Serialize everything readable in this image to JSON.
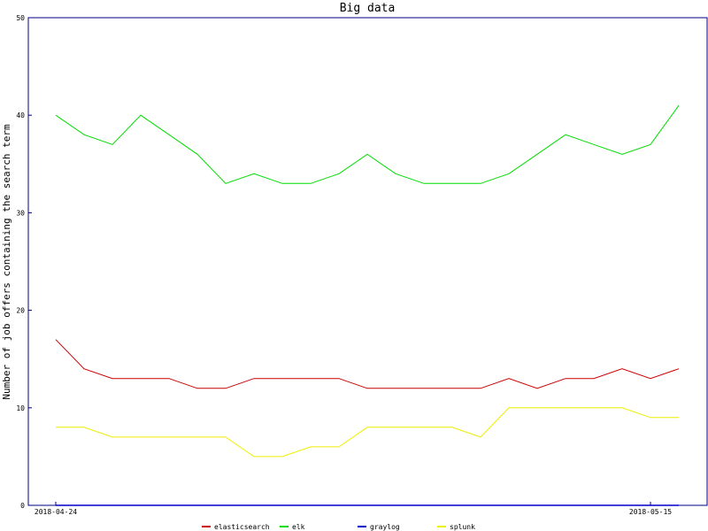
{
  "chart_data": {
    "type": "line",
    "title": "Big data",
    "xlabel": "",
    "ylabel": "Number of job offers containing the search term",
    "x": [
      "2018-04-24",
      "2018-04-25",
      "2018-04-26",
      "2018-04-27",
      "2018-04-28",
      "2018-04-29",
      "2018-04-30",
      "2018-05-01",
      "2018-05-02",
      "2018-05-03",
      "2018-05-04",
      "2018-05-05",
      "2018-05-06",
      "2018-05-07",
      "2018-05-08",
      "2018-05-09",
      "2018-05-10",
      "2018-05-11",
      "2018-05-12",
      "2018-05-13",
      "2018-05-14",
      "2018-05-15",
      "2018-05-16"
    ],
    "x_tick_labels": [
      "2018-04-24",
      "2018-05-15"
    ],
    "ylim": [
      0,
      50
    ],
    "y_ticks": [
      0,
      10,
      20,
      30,
      40,
      50
    ],
    "grid": false,
    "legend_position": "bottom",
    "series": [
      {
        "name": "elasticsearch",
        "color": "#cc0000",
        "values": [
          17,
          14,
          13,
          13,
          13,
          12,
          12,
          13,
          13,
          13,
          13,
          12,
          12,
          12,
          12,
          12,
          13,
          12,
          13,
          13,
          14,
          13,
          14
        ]
      },
      {
        "name": "elk",
        "color": "#00dd00",
        "values": [
          40,
          38,
          37,
          40,
          38,
          36,
          33,
          34,
          33,
          33,
          34,
          36,
          34,
          33,
          33,
          33,
          34,
          36,
          38,
          37,
          36,
          37,
          41
        ]
      },
      {
        "name": "graylog",
        "color": "#0000cc",
        "values": [
          0,
          0,
          0,
          0,
          0,
          0,
          0,
          0,
          0,
          0,
          0,
          0,
          0,
          0,
          0,
          0,
          0,
          0,
          0,
          0,
          0,
          0,
          0
        ]
      },
      {
        "name": "splunk",
        "color": "#eeee00",
        "values": [
          8,
          8,
          7,
          7,
          7,
          7,
          7,
          5,
          5,
          6,
          6,
          8,
          8,
          8,
          8,
          7,
          10,
          10,
          10,
          10,
          10,
          9,
          9
        ]
      }
    ]
  }
}
